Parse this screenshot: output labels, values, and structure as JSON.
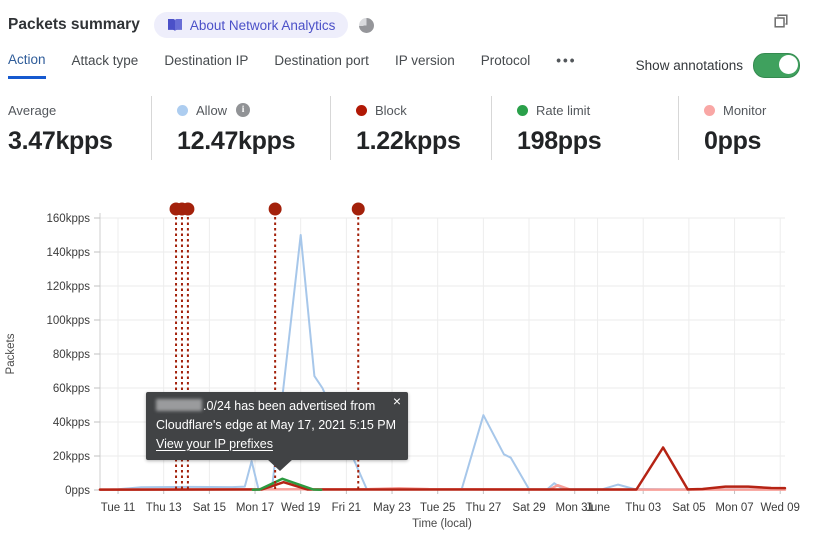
{
  "header": {
    "title": "Packets summary",
    "about_badge": "About Network Analytics"
  },
  "tabs": {
    "items": [
      "Action",
      "Attack type",
      "Destination IP",
      "Destination port",
      "IP version",
      "Protocol"
    ],
    "active": "Action",
    "more": "•••"
  },
  "annotations_toggle": {
    "label": "Show annotations",
    "state": "on",
    "color": "#3fa15e"
  },
  "stats": [
    {
      "label": "Average",
      "value": "3.47kpps",
      "dot": null
    },
    {
      "label": "Allow",
      "value": "12.47kpps",
      "dot": "#adcdf0",
      "info": "i"
    },
    {
      "label": "Block",
      "value": "1.22kpps",
      "dot": "#b11805"
    },
    {
      "label": "Rate limit",
      "value": "198pps",
      "dot": "#2aa04a"
    },
    {
      "label": "Monitor",
      "value": "0pps",
      "dot": "#f9a7a5"
    }
  ],
  "tooltip": {
    "line1_suffix": ".0/24 has been advertised from",
    "line2": "Cloudflare's edge at May 17, 2021 5:15 PM",
    "link": "View your IP prefixes",
    "close": "×"
  },
  "chart_data": {
    "type": "line",
    "xlabel": "Time (local)",
    "ylabel": "Packets",
    "ylim": [
      0,
      160
    ],
    "xlim_days": [
      -0.79,
      29.21
    ],
    "grid": true,
    "y_ticks": [
      {
        "value": 0,
        "label": "0pps"
      },
      {
        "value": 20,
        "label": "20kpps"
      },
      {
        "value": 40,
        "label": "40kpps"
      },
      {
        "value": 60,
        "label": "60kpps"
      },
      {
        "value": 80,
        "label": "80kpps"
      },
      {
        "value": 100,
        "label": "100kpps"
      },
      {
        "value": 120,
        "label": "120kpps"
      },
      {
        "value": 140,
        "label": "140kpps"
      },
      {
        "value": 160,
        "label": "160kpps"
      }
    ],
    "x_ticks": [
      {
        "day": 0,
        "label": "Tue 11"
      },
      {
        "day": 2,
        "label": "Thu 13"
      },
      {
        "day": 4,
        "label": "Sat 15"
      },
      {
        "day": 6,
        "label": "Mon 17"
      },
      {
        "day": 8,
        "label": "Wed 19"
      },
      {
        "day": 10,
        "label": "Fri 21"
      },
      {
        "day": 12,
        "label": "May 23"
      },
      {
        "day": 14,
        "label": "Tue 25"
      },
      {
        "day": 16,
        "label": "Thu 27"
      },
      {
        "day": 18,
        "label": "Sat 29"
      },
      {
        "day": 20,
        "label": "Mon 31"
      },
      {
        "day": 21,
        "label": "June"
      },
      {
        "day": 23,
        "label": "Thu 03"
      },
      {
        "day": 25,
        "label": "Sat 05"
      },
      {
        "day": 27,
        "label": "Mon 07"
      },
      {
        "day": 29,
        "label": "Wed 09"
      }
    ],
    "series": [
      {
        "name": "Allow",
        "color": "#a7c7ea",
        "width": 2,
        "points": [
          [
            -0.79,
            0.2
          ],
          [
            0,
            0.4
          ],
          [
            1,
            1.6
          ],
          [
            3,
            1.8
          ],
          [
            5,
            1.7
          ],
          [
            5.55,
            2
          ],
          [
            5.85,
            17
          ],
          [
            6.15,
            0.4
          ],
          [
            6.6,
            0.4
          ],
          [
            6.75,
            2
          ],
          [
            8,
            150
          ],
          [
            8.6,
            67
          ],
          [
            8.95,
            60
          ],
          [
            10.9,
            0.3
          ],
          [
            14.9,
            0.3
          ],
          [
            15.05,
            0.5
          ],
          [
            16,
            44
          ],
          [
            16.9,
            21
          ],
          [
            17.2,
            19
          ],
          [
            18,
            0.5
          ],
          [
            18.8,
            0.4
          ],
          [
            19.1,
            4
          ],
          [
            19.5,
            0.4
          ],
          [
            21.2,
            0.4
          ],
          [
            21.9,
            3.2
          ],
          [
            22.6,
            0.6
          ],
          [
            24,
            0.4
          ],
          [
            29.21,
            0.4
          ]
        ]
      },
      {
        "name": "Monitor",
        "color": "#f7a09a",
        "width": 2.5,
        "points": [
          [
            -0.79,
            0.25
          ],
          [
            11,
            0.5
          ],
          [
            12.3,
            1
          ],
          [
            13.6,
            0.5
          ],
          [
            18.9,
            0.3
          ],
          [
            19.25,
            2.8
          ],
          [
            19.8,
            0.3
          ],
          [
            24,
            0.25
          ],
          [
            29.21,
            0.25
          ]
        ]
      },
      {
        "name": "Block",
        "color": "#b52314",
        "width": 2.5,
        "points": [
          [
            -0.79,
            0.25
          ],
          [
            5.5,
            0.3
          ],
          [
            6.3,
            0.3
          ],
          [
            7.25,
            4.6
          ],
          [
            8.3,
            0.3
          ],
          [
            12,
            0.3
          ],
          [
            22.7,
            0.3
          ],
          [
            23.87,
            25
          ],
          [
            24.95,
            0.35
          ],
          [
            25.6,
            0.6
          ],
          [
            26.6,
            2
          ],
          [
            27.6,
            2
          ],
          [
            28.6,
            1.2
          ],
          [
            29.21,
            1.1
          ]
        ]
      },
      {
        "name": "Rate limit",
        "color": "#2c9a40",
        "width": 2.5,
        "points": [
          [
            5.9,
            0.15
          ],
          [
            6.2,
            0.3
          ],
          [
            7.2,
            6.6
          ],
          [
            8.55,
            0.3
          ],
          [
            8.9,
            0.15
          ]
        ]
      }
    ],
    "annotations": {
      "color": "#a3210b",
      "events": [
        {
          "day": 2.54
        },
        {
          "day": 2.8
        },
        {
          "day": 3.06
        },
        {
          "day": 6.88
        },
        {
          "day": 10.52
        }
      ]
    }
  }
}
